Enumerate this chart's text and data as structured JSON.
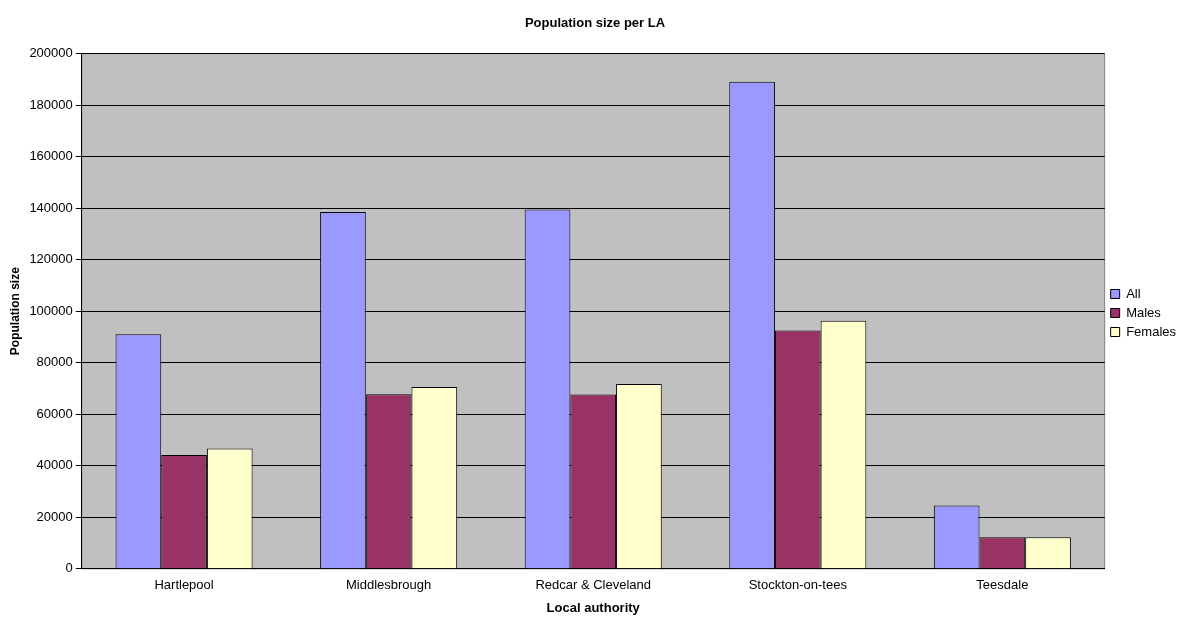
{
  "chart_data": {
    "type": "bar",
    "title": "Population size per LA",
    "xlabel": "Local authority",
    "ylabel": "Population size",
    "categories": [
      "Hartlepool",
      "Middlesbrough",
      "Redcar & Cleveland",
      "Stockton-on-tees",
      "Teesdale"
    ],
    "series": [
      {
        "name": "All",
        "color": "#9999ff",
        "values": [
          91100,
          138500,
          139500,
          189100,
          24600
        ]
      },
      {
        "name": "Males",
        "color": "#993366",
        "values": [
          44200,
          67800,
          67700,
          92500,
          12200
        ]
      },
      {
        "name": "Females",
        "color": "#ffffcc",
        "values": [
          46700,
          70600,
          71700,
          96300,
          12200
        ]
      }
    ],
    "ylim": [
      0,
      200000
    ],
    "yticks": [
      0,
      20000,
      40000,
      60000,
      80000,
      100000,
      120000,
      140000,
      160000,
      180000,
      200000
    ],
    "grid": "y",
    "legend": "right"
  }
}
